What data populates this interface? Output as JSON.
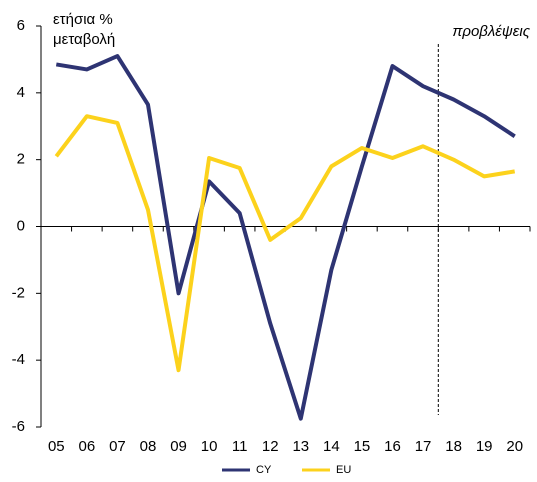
{
  "chart_data": {
    "type": "line",
    "ylabel": [
      "ετήσια %",
      "μεταβολή"
    ],
    "annotation": "προβλέψεις",
    "categories": [
      "05",
      "06",
      "07",
      "08",
      "09",
      "10",
      "11",
      "12",
      "13",
      "14",
      "15",
      "16",
      "17",
      "18",
      "19",
      "20"
    ],
    "series": [
      {
        "name": "CY",
        "color": "#2e3473",
        "values": [
          4.85,
          4.7,
          5.1,
          3.65,
          -2.0,
          1.35,
          0.4,
          -2.9,
          -5.75,
          -1.3,
          1.8,
          4.8,
          4.2,
          3.8,
          3.3,
          2.7
        ]
      },
      {
        "name": "EU",
        "color": "#fcd21c",
        "values": [
          2.1,
          3.3,
          3.1,
          0.5,
          -4.3,
          2.05,
          1.75,
          -0.4,
          0.25,
          1.8,
          2.35,
          2.05,
          2.4,
          2.0,
          1.5,
          1.65
        ]
      }
    ],
    "ylim": [
      -6,
      6
    ],
    "yticks": [
      -6,
      -4,
      -2,
      0,
      2,
      4,
      6
    ],
    "legend": "bottom"
  }
}
